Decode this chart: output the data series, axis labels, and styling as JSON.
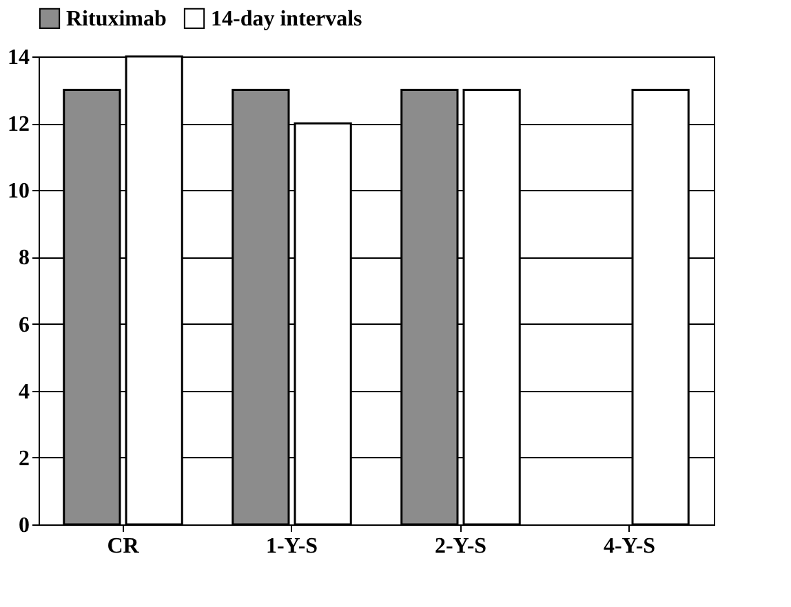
{
  "chart_data": {
    "type": "bar",
    "categories": [
      "CR",
      "1-Y-S",
      "2-Y-S",
      "4-Y-S"
    ],
    "series": [
      {
        "name": "Rituximab",
        "color": "#8c8c8c",
        "values": [
          13,
          13,
          13,
          null
        ]
      },
      {
        "name": "14-day intervals",
        "color": "#ffffff",
        "values": [
          14,
          12,
          13,
          13
        ]
      }
    ],
    "ylim": [
      0,
      14
    ],
    "yticks": [
      0,
      2,
      4,
      6,
      8,
      10,
      12,
      14
    ],
    "grid": "y",
    "legend": "top"
  }
}
